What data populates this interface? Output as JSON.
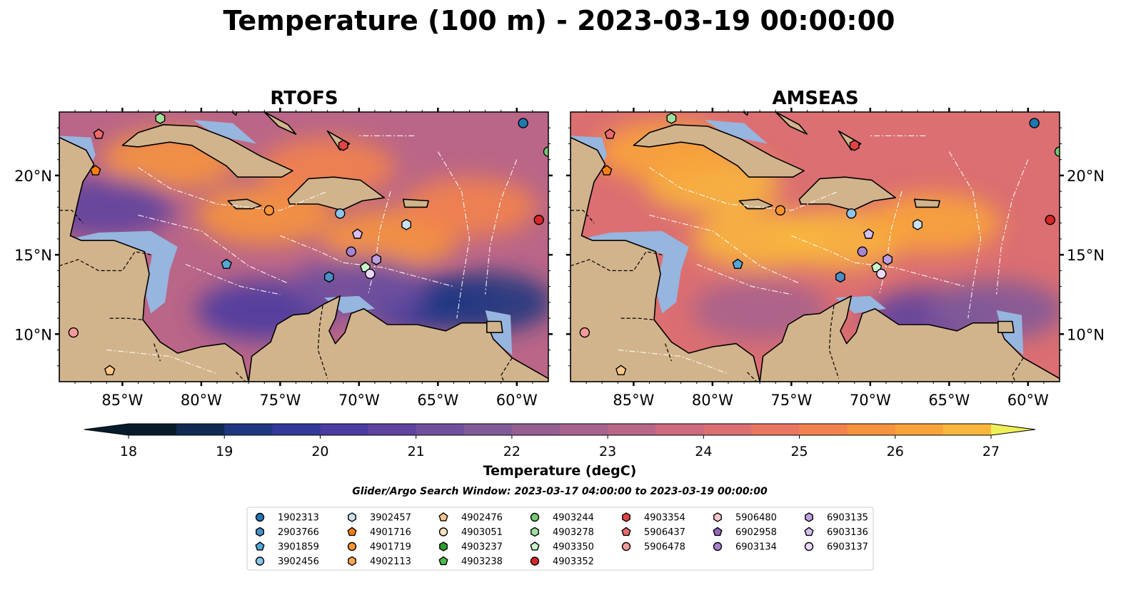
{
  "figure": {
    "title": "Temperature (100 m) - 2023-03-19 00:00:00",
    "colorbar_label": "Temperature (degC)",
    "search_window": "Glider/Argo Search Window: 2023-03-17 04:00:00 to 2023-03-19 00:00:00"
  },
  "chart_data": [
    {
      "type": "heatmap",
      "title": "RTOFS",
      "xlim": [
        -89,
        -58
      ],
      "ylim": [
        7,
        24
      ],
      "x_ticks": [
        -85,
        -80,
        -75,
        -70,
        -65,
        -60
      ],
      "x_tick_labels": [
        "85°W",
        "80°W",
        "75°W",
        "70°W",
        "65°W",
        "60°W"
      ],
      "y_ticks": [
        10,
        15,
        20
      ],
      "y_tick_labels": [
        "10°N",
        "15°N",
        "20°N"
      ],
      "y_axis_side": "left",
      "warm_zones": [
        {
          "x": -76,
          "y": 17.5,
          "value": 25.8
        },
        {
          "x": -68,
          "y": 16.0,
          "value": 25.6
        },
        {
          "x": -82,
          "y": 21.0,
          "value": 25.5
        },
        {
          "x": -63,
          "y": 18.0,
          "value": 25.3
        },
        {
          "x": -72,
          "y": 20.5,
          "value": 25.4
        }
      ],
      "cold_zones": [
        {
          "x": -76,
          "y": 11.5,
          "value": 20.3
        },
        {
          "x": -66,
          "y": 12.0,
          "value": 19.8
        },
        {
          "x": -62,
          "y": 12.0,
          "value": 19.2
        },
        {
          "x": -86,
          "y": 18.0,
          "value": 20.5
        },
        {
          "x": -70,
          "y": 13.0,
          "value": 21.0
        }
      ]
    },
    {
      "type": "heatmap",
      "title": "AMSEAS",
      "xlim": [
        -89,
        -58
      ],
      "ylim": [
        7,
        24
      ],
      "x_ticks": [
        -85,
        -80,
        -75,
        -70,
        -65,
        -60
      ],
      "x_tick_labels": [
        "85°W",
        "80°W",
        "75°W",
        "70°W",
        "65°W",
        "60°W"
      ],
      "y_ticks": [
        10,
        15,
        20
      ],
      "y_tick_labels": [
        "10°N",
        "15°N",
        "20°N"
      ],
      "y_axis_side": "right",
      "warm_zones": [
        {
          "x": -80,
          "y": 19.5,
          "value": 26.8
        },
        {
          "x": -72,
          "y": 16.0,
          "value": 26.7
        },
        {
          "x": -77,
          "y": 16.0,
          "value": 26.5
        },
        {
          "x": -83,
          "y": 21.5,
          "value": 26.4
        },
        {
          "x": -66,
          "y": 17.0,
          "value": 26.0
        }
      ],
      "cold_zones": [
        {
          "x": -66,
          "y": 11.0,
          "value": 20.8
        },
        {
          "x": -77,
          "y": 11.5,
          "value": 22.5
        },
        {
          "x": -62,
          "y": 11.5,
          "value": 21.5
        }
      ]
    }
  ],
  "colorbar": {
    "min": 18,
    "max": 27,
    "step": 0.5,
    "ticks": [
      18,
      19,
      20,
      21,
      22,
      23,
      24,
      25,
      26,
      27
    ],
    "colors": [
      "#071c2b",
      "#102a52",
      "#1f3780",
      "#32399a",
      "#4a3ca0",
      "#5e449f",
      "#70509d",
      "#825a98",
      "#955f92",
      "#a7638d",
      "#ba6688",
      "#cc6a7f",
      "#db6f72",
      "#e97661",
      "#f2834e",
      "#f6933f",
      "#f8a43a",
      "#f8b63d",
      "#f5ca42",
      "#f1e04a",
      "#eef058"
    ]
  },
  "legend": {
    "columns": [
      [
        {
          "label": "1902313",
          "shape": "circle",
          "color": "#1f77b4"
        },
        {
          "label": "2903766",
          "shape": "hexagon",
          "color": "#4a8fc8"
        },
        {
          "label": "3901859",
          "shape": "pentagon",
          "color": "#52a8d6"
        },
        {
          "label": "3902456",
          "shape": "circle",
          "color": "#8ec4ea"
        }
      ],
      [
        {
          "label": "3902457",
          "shape": "hexagon",
          "color": "#c8e3f7"
        },
        {
          "label": "4901716",
          "shape": "pentagon",
          "color": "#ff7f0e"
        },
        {
          "label": "4901719",
          "shape": "circle",
          "color": "#ff9430"
        },
        {
          "label": "4902113",
          "shape": "hexagon",
          "color": "#ffaa55"
        }
      ],
      [
        {
          "label": "4902476",
          "shape": "pentagon",
          "color": "#ffc88a"
        },
        {
          "label": "4903051",
          "shape": "circle",
          "color": "#ffe0bf"
        },
        {
          "label": "4903237",
          "shape": "hexagon",
          "color": "#2ca02c"
        },
        {
          "label": "4903238",
          "shape": "pentagon",
          "color": "#4cbb4c"
        }
      ],
      [
        {
          "label": "4903244",
          "shape": "circle",
          "color": "#74c974"
        },
        {
          "label": "4903278",
          "shape": "hexagon",
          "color": "#9fe09f"
        },
        {
          "label": "4903350",
          "shape": "pentagon",
          "color": "#c9f5c9"
        },
        {
          "label": "4903352",
          "shape": "circle",
          "color": "#d62728"
        }
      ],
      [
        {
          "label": "4903354",
          "shape": "hexagon",
          "color": "#e04545"
        },
        {
          "label": "5906437",
          "shape": "pentagon",
          "color": "#ee6a6a"
        },
        {
          "label": "5906478",
          "shape": "circle",
          "color": "#f59a9a"
        }
      ],
      [
        {
          "label": "5906480",
          "shape": "hexagon",
          "color": "#fbc6c6"
        },
        {
          "label": "6902958",
          "shape": "pentagon",
          "color": "#9467bd"
        },
        {
          "label": "6903134",
          "shape": "circle",
          "color": "#a883d0"
        }
      ],
      [
        {
          "label": "6903135",
          "shape": "hexagon",
          "color": "#bd9fe0"
        },
        {
          "label": "6903136",
          "shape": "pentagon",
          "color": "#d4bff0"
        },
        {
          "label": "6903137",
          "shape": "circle",
          "color": "#ead9fa"
        }
      ]
    ]
  },
  "floats": [
    {
      "id": "1902313",
      "lon": -59.6,
      "lat": 23.3
    },
    {
      "id": "4903244",
      "lon": -58.0,
      "lat": 21.5
    },
    {
      "id": "4903278",
      "lon": -82.6,
      "lat": 23.6
    },
    {
      "id": "5906437",
      "lon": -86.5,
      "lat": 22.6
    },
    {
      "id": "4901716",
      "lon": -86.7,
      "lat": 20.3
    },
    {
      "id": "4903354",
      "lon": -71.0,
      "lat": 21.9
    },
    {
      "id": "4901719",
      "lon": -75.7,
      "lat": 17.8
    },
    {
      "id": "3902456",
      "lon": -71.2,
      "lat": 17.6
    },
    {
      "id": "3902457",
      "lon": -67.0,
      "lat": 16.9
    },
    {
      "id": "4903352",
      "lon": -58.6,
      "lat": 17.2
    },
    {
      "id": "6903136",
      "lon": -70.1,
      "lat": 16.3
    },
    {
      "id": "3901859",
      "lon": -78.4,
      "lat": 14.4
    },
    {
      "id": "6903134",
      "lon": -70.5,
      "lat": 15.2
    },
    {
      "id": "6903135",
      "lon": -68.9,
      "lat": 14.7
    },
    {
      "id": "4903350",
      "lon": -69.6,
      "lat": 14.2
    },
    {
      "id": "6903137",
      "lon": -69.3,
      "lat": 13.8
    },
    {
      "id": "2903766",
      "lon": -71.9,
      "lat": 13.6
    },
    {
      "id": "5906478",
      "lon": -88.1,
      "lat": 10.1
    },
    {
      "id": "4902476",
      "lon": -85.8,
      "lat": 7.7
    }
  ]
}
